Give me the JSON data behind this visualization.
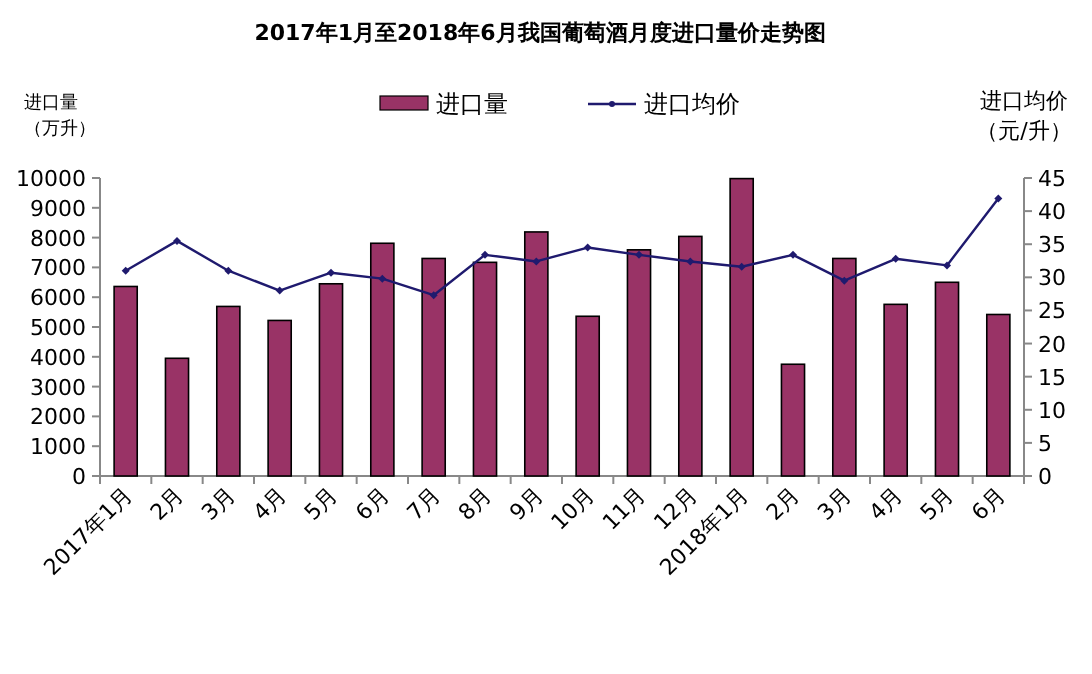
{
  "chart_data": {
    "type": "bar",
    "title": "2017年1月至2018年6月我国葡萄酒月度进口量价走势图",
    "categories": [
      "2017年1月",
      "2月",
      "3月",
      "4月",
      "5月",
      "6月",
      "7月",
      "8月",
      "9月",
      "10月",
      "11月",
      "12月",
      "2018年1月",
      "2月",
      "3月",
      "4月",
      "5月",
      "6月"
    ],
    "series": [
      {
        "name": "进口量",
        "color": "#993366",
        "values": [
          6360,
          3950,
          5690,
          5220,
          6450,
          7810,
          7300,
          7170,
          8190,
          5360,
          7590,
          8040,
          9980,
          3750,
          7300,
          5760,
          6500,
          5420
        ]
      },
      {
        "name": "进口均价",
        "type": "line",
        "axis": "y2",
        "color": "#1f1a6e",
        "marker": "diamond",
        "values": [
          31.0,
          35.5,
          31.0,
          28.0,
          30.7,
          29.8,
          27.3,
          33.4,
          32.4,
          34.5,
          33.4,
          32.4,
          31.6,
          33.4,
          29.5,
          32.8,
          31.8,
          41.9
        ]
      }
    ],
    "ylabel": "进口量（万升）",
    "y2label": "进口均价（元/升）",
    "ylim": [
      0,
      10000
    ],
    "yticks": [
      0,
      1000,
      2000,
      3000,
      4000,
      5000,
      6000,
      7000,
      8000,
      9000,
      10000
    ],
    "y2lim": [
      0,
      45
    ],
    "y2ticks": [
      0,
      5,
      10,
      15,
      20,
      25,
      30,
      35,
      40,
      45
    ],
    "legend": "top",
    "grid": false
  }
}
